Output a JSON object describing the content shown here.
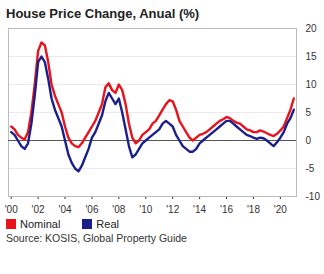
{
  "chart_data": {
    "type": "line",
    "title": "House Price Change, Anual (%)",
    "caption": "Source: KOSIS, Global Property Guide",
    "x": [
      2000,
      2000.25,
      2000.5,
      2000.75,
      2001,
      2001.25,
      2001.5,
      2001.75,
      2002,
      2002.25,
      2002.5,
      2002.75,
      2003,
      2003.25,
      2003.5,
      2003.75,
      2004,
      2004.25,
      2004.5,
      2004.75,
      2005,
      2005.25,
      2005.5,
      2005.75,
      2006,
      2006.25,
      2006.5,
      2006.75,
      2007,
      2007.25,
      2007.5,
      2007.75,
      2008,
      2008.25,
      2008.5,
      2008.75,
      2009,
      2009.25,
      2009.5,
      2009.75,
      2010,
      2010.25,
      2010.5,
      2010.75,
      2011,
      2011.25,
      2011.5,
      2011.75,
      2012,
      2012.25,
      2012.5,
      2012.75,
      2013,
      2013.25,
      2013.5,
      2013.75,
      2014,
      2014.25,
      2014.5,
      2014.75,
      2015,
      2015.25,
      2015.5,
      2015.75,
      2016,
      2016.25,
      2016.5,
      2016.75,
      2017,
      2017.25,
      2017.5,
      2017.75,
      2018,
      2018.25,
      2018.5,
      2018.75,
      2019,
      2019.25,
      2019.5,
      2019.75,
      2020,
      2020.25,
      2020.5,
      2020.75,
      2021
    ],
    "series": [
      {
        "name": "Nominal",
        "color": "#e8131b",
        "values": [
          2.5,
          2.0,
          1.0,
          0.5,
          0.2,
          1.5,
          5.0,
          10.0,
          16.0,
          17.5,
          17.0,
          14.0,
          10.0,
          8.0,
          6.5,
          5.0,
          2.5,
          0.5,
          -0.5,
          -1.0,
          -1.2,
          -0.5,
          0.5,
          1.5,
          2.5,
          3.5,
          5.0,
          6.5,
          9.5,
          10.2,
          9.0,
          8.5,
          10.0,
          9.0,
          6.5,
          3.0,
          0.5,
          -0.5,
          0.0,
          1.0,
          1.5,
          2.0,
          3.0,
          3.5,
          4.5,
          5.5,
          6.5,
          7.2,
          7.0,
          5.5,
          3.5,
          2.5,
          1.5,
          0.5,
          0.0,
          0.5,
          1.0,
          1.2,
          1.5,
          2.0,
          2.5,
          3.0,
          3.5,
          3.8,
          4.2,
          4.0,
          3.5,
          3.2,
          3.0,
          2.5,
          2.0,
          1.8,
          1.5,
          1.5,
          1.8,
          1.6,
          1.3,
          1.0,
          0.8,
          1.2,
          1.8,
          2.5,
          4.0,
          5.5,
          7.5
        ]
      },
      {
        "name": "Real",
        "color": "#1a1f8c",
        "values": [
          1.5,
          1.0,
          0.0,
          -1.0,
          -1.5,
          -0.5,
          3.0,
          8.0,
          14.0,
          15.0,
          14.0,
          11.0,
          7.5,
          5.5,
          4.0,
          2.5,
          0.0,
          -2.5,
          -4.0,
          -5.0,
          -5.5,
          -4.5,
          -3.0,
          -1.5,
          0.5,
          1.5,
          3.0,
          4.5,
          7.0,
          8.5,
          7.5,
          6.5,
          7.5,
          5.0,
          2.0,
          -1.0,
          -3.0,
          -2.5,
          -1.5,
          -0.5,
          0.0,
          0.5,
          1.0,
          1.5,
          2.0,
          3.0,
          3.5,
          3.0,
          2.5,
          1.0,
          0.0,
          -1.0,
          -1.5,
          -2.0,
          -2.0,
          -1.5,
          -0.5,
          0.0,
          0.5,
          1.0,
          1.5,
          2.0,
          2.5,
          3.0,
          3.5,
          3.5,
          3.0,
          2.5,
          2.0,
          1.5,
          1.0,
          0.8,
          0.5,
          0.3,
          0.5,
          0.4,
          0.0,
          -0.5,
          -1.0,
          -0.3,
          0.5,
          1.5,
          3.0,
          4.0,
          5.5
        ]
      }
    ],
    "xlim": [
      1999.8,
      2021.2
    ],
    "xticks": [
      {
        "value": 2000,
        "label": "'00"
      },
      {
        "value": 2002,
        "label": "'02"
      },
      {
        "value": 2004,
        "label": "'04"
      },
      {
        "value": 2006,
        "label": "'06"
      },
      {
        "value": 2008,
        "label": "'08"
      },
      {
        "value": 2010,
        "label": "'10"
      },
      {
        "value": 2012,
        "label": "'12"
      },
      {
        "value": 2014,
        "label": "'14"
      },
      {
        "value": 2016,
        "label": "'16"
      },
      {
        "value": 2018,
        "label": "'18"
      },
      {
        "value": 2020,
        "label": "'20"
      }
    ],
    "ylim": [
      -10,
      20
    ],
    "yticks": [
      -10,
      -5,
      0,
      5,
      10,
      15,
      20
    ],
    "grid": true,
    "legend": "bottom-left"
  }
}
